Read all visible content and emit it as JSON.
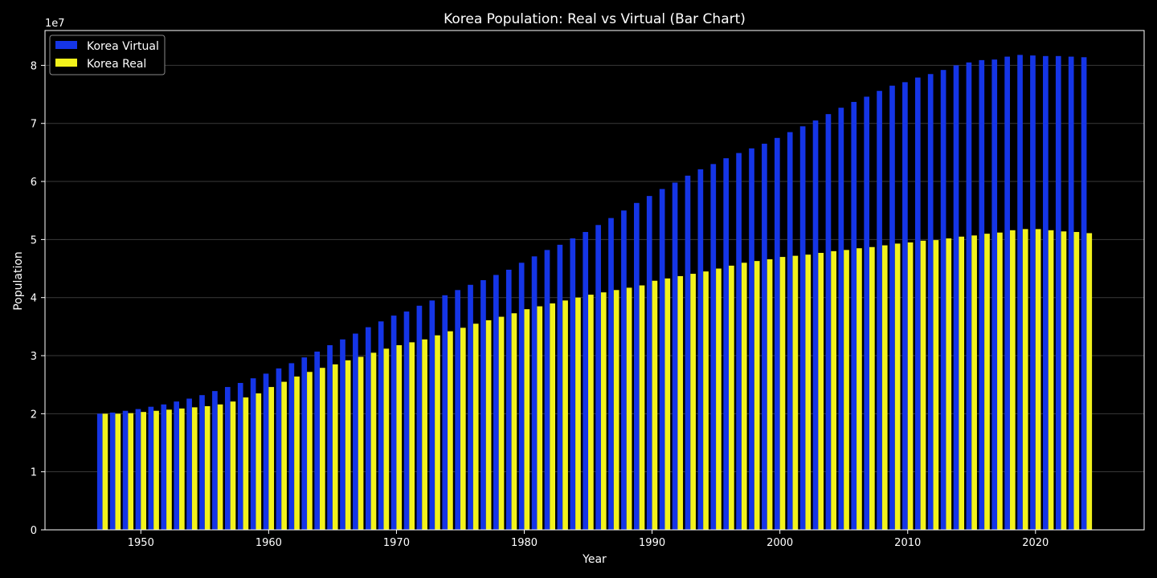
{
  "chart_data": {
    "type": "bar",
    "title": "Korea Population: Real vs Virtual (Bar Chart)",
    "xlabel": "Year",
    "ylabel": "Population",
    "y_scale_label": "1e7",
    "xlim": [
      1942.5,
      2028.5
    ],
    "ylim": [
      0,
      8.6
    ],
    "x_ticks": [
      1950,
      1960,
      1970,
      1980,
      1990,
      2000,
      2010,
      2020
    ],
    "y_ticks": [
      0,
      1,
      2,
      3,
      4,
      5,
      6,
      7,
      8
    ],
    "grid": "horizontal",
    "legend_position": "top-left",
    "x": [
      1947,
      1948,
      1949,
      1950,
      1951,
      1952,
      1953,
      1954,
      1955,
      1956,
      1957,
      1958,
      1959,
      1960,
      1961,
      1962,
      1963,
      1964,
      1965,
      1966,
      1967,
      1968,
      1969,
      1970,
      1971,
      1972,
      1973,
      1974,
      1975,
      1976,
      1977,
      1978,
      1979,
      1980,
      1981,
      1982,
      1983,
      1984,
      1985,
      1986,
      1987,
      1988,
      1989,
      1990,
      1991,
      1992,
      1993,
      1994,
      1995,
      1996,
      1997,
      1998,
      1999,
      2000,
      2001,
      2002,
      2003,
      2004,
      2005,
      2006,
      2007,
      2008,
      2009,
      2010,
      2011,
      2012,
      2013,
      2014,
      2015,
      2016,
      2017,
      2018,
      2019,
      2020,
      2021,
      2022,
      2023,
      2024
    ],
    "series": [
      {
        "name": "Korea Virtual",
        "color": "#1535e6",
        "values": [
          2.0,
          2.02,
          2.05,
          2.08,
          2.12,
          2.16,
          2.21,
          2.26,
          2.32,
          2.39,
          2.46,
          2.53,
          2.61,
          2.69,
          2.78,
          2.87,
          2.97,
          3.07,
          3.18,
          3.28,
          3.38,
          3.49,
          3.59,
          3.69,
          3.76,
          3.86,
          3.95,
          4.04,
          4.13,
          4.22,
          4.3,
          4.39,
          4.48,
          4.6,
          4.71,
          4.82,
          4.91,
          5.02,
          5.13,
          5.25,
          5.37,
          5.5,
          5.63,
          5.75,
          5.87,
          5.98,
          6.1,
          6.21,
          6.3,
          6.4,
          6.49,
          6.57,
          6.65,
          6.75,
          6.85,
          6.95,
          7.05,
          7.16,
          7.27,
          7.37,
          7.46,
          7.56,
          7.65,
          7.71,
          7.79,
          7.85,
          7.92,
          8.0,
          8.05,
          8.09,
          8.1,
          8.15,
          8.18,
          8.17,
          8.16,
          8.16,
          8.15,
          8.14
        ]
      },
      {
        "name": "Korea Real",
        "color": "#f2f21c",
        "values": [
          2.0,
          2.0,
          2.01,
          2.03,
          2.05,
          2.07,
          2.09,
          2.11,
          2.13,
          2.16,
          2.21,
          2.28,
          2.35,
          2.46,
          2.55,
          2.64,
          2.72,
          2.79,
          2.85,
          2.92,
          2.98,
          3.05,
          3.12,
          3.18,
          3.23,
          3.28,
          3.35,
          3.42,
          3.48,
          3.55,
          3.61,
          3.67,
          3.73,
          3.8,
          3.85,
          3.9,
          3.95,
          4.0,
          4.05,
          4.09,
          4.13,
          4.17,
          4.21,
          4.29,
          4.33,
          4.37,
          4.41,
          4.45,
          4.5,
          4.55,
          4.6,
          4.63,
          4.66,
          4.7,
          4.72,
          4.74,
          4.77,
          4.8,
          4.82,
          4.85,
          4.87,
          4.9,
          4.93,
          4.95,
          4.98,
          4.99,
          5.02,
          5.05,
          5.07,
          5.1,
          5.12,
          5.16,
          5.18,
          5.18,
          5.16,
          5.14,
          5.13,
          5.11
        ]
      }
    ]
  }
}
